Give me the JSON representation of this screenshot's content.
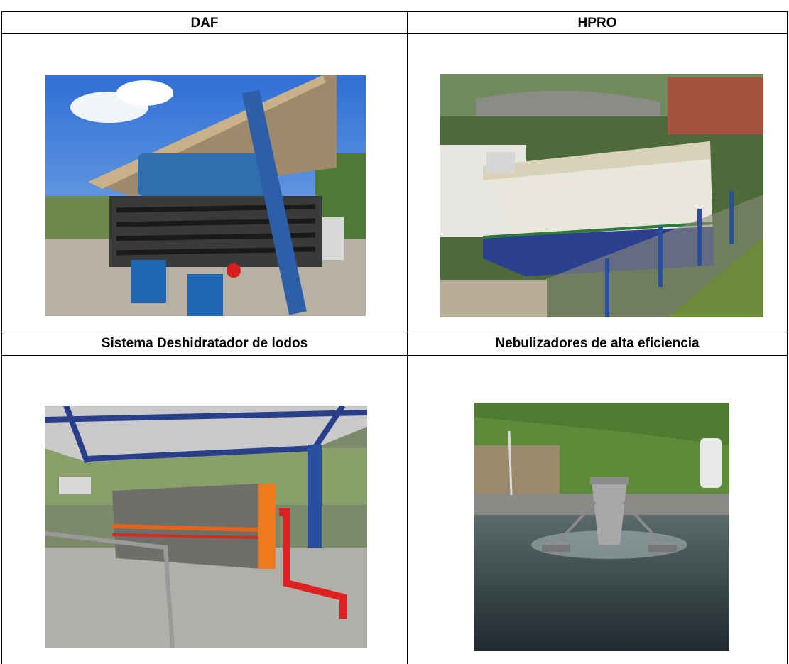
{
  "table": {
    "rows": [
      [
        "DAF",
        "HPRO"
      ],
      [
        "Sistema Deshidratador de lodos",
        "Nebulizadores de alta eficiencia"
      ]
    ]
  }
}
